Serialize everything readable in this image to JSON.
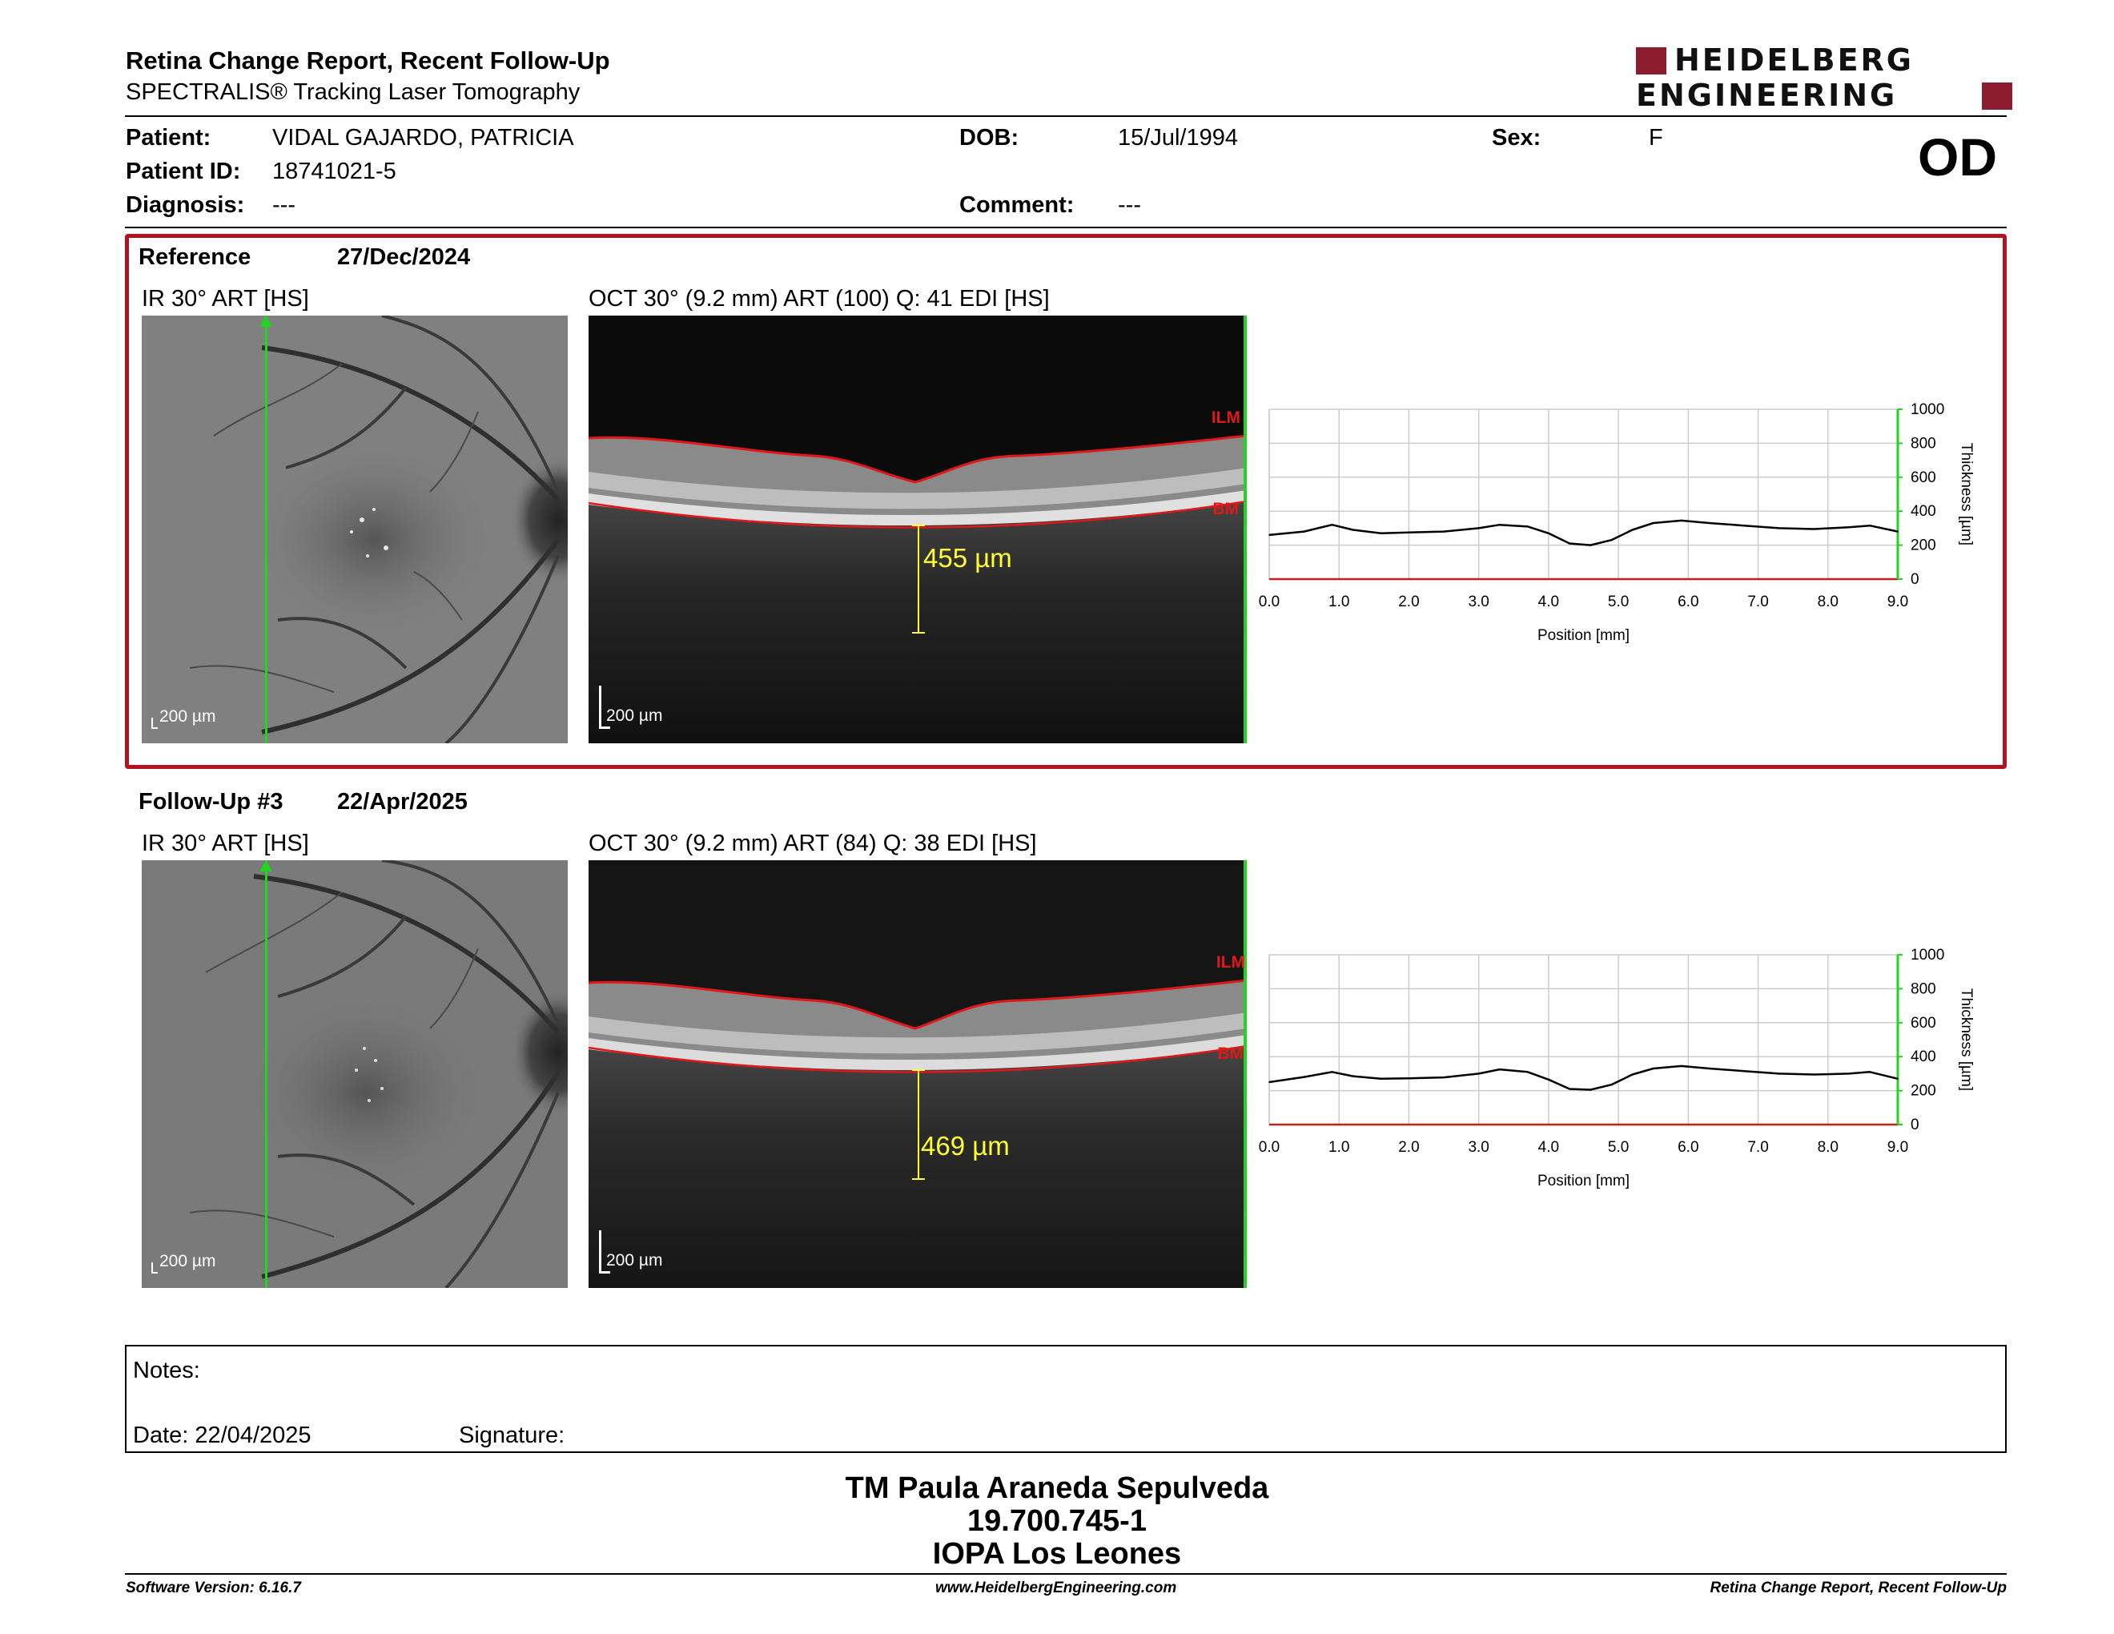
{
  "header": {
    "title": "Retina Change Report, Recent Follow-Up",
    "subtitle": "SPECTRALIS® Tracking Laser Tomography",
    "logo_line1": "HEIDELBERG",
    "logo_line2": "ENGINEERING",
    "eye": "OD"
  },
  "patient": {
    "name_label": "Patient:",
    "name": "VIDAL GAJARDO, PATRICIA",
    "id_label": "Patient ID:",
    "id": "18741021-5",
    "diagnosis_label": "Diagnosis:",
    "diagnosis": "---",
    "dob_label": "DOB:",
    "dob": "15/Jul/1994",
    "comment_label": "Comment:",
    "comment": "---",
    "sex_label": "Sex:",
    "sex": "F"
  },
  "reference": {
    "label": "Reference",
    "date": "27/Dec/2024",
    "ir_title": "IR 30° ART [HS]",
    "oct_title": "OCT 30° (9.2 mm) ART (100) Q: 41 EDI [HS]",
    "ir_scale": "200 µm",
    "oct_scale": "200 µm",
    "measurement": "455 µm",
    "ilm": "ILM",
    "bm": "BM"
  },
  "followup": {
    "label": "Follow-Up #3",
    "date": "22/Apr/2025",
    "ir_title": "IR 30° ART [HS]",
    "oct_title": "OCT 30° (9.2 mm) ART (84) Q: 38 EDI [HS]",
    "ir_scale": "200 µm",
    "oct_scale": "200 µm",
    "measurement": "469 µm",
    "ilm": "ILM",
    "bm": "BM"
  },
  "chart_data": [
    {
      "type": "line",
      "xlabel": "Position [mm]",
      "ylabel": "Thickness [µm]",
      "xlim": [
        0,
        9.0
      ],
      "ylim": [
        0,
        1000
      ],
      "xticks": [
        "0.0",
        "1.0",
        "2.0",
        "3.0",
        "4.0",
        "5.0",
        "6.0",
        "7.0",
        "8.0",
        "9.0"
      ],
      "yticks": [
        "0",
        "200",
        "400",
        "600",
        "800",
        "1000"
      ],
      "grid": true,
      "series_color": "#000000",
      "x": [
        0.0,
        0.5,
        0.9,
        1.2,
        1.6,
        2.0,
        2.5,
        3.0,
        3.3,
        3.7,
        4.0,
        4.3,
        4.6,
        4.9,
        5.2,
        5.5,
        5.9,
        6.3,
        6.8,
        7.3,
        7.8,
        8.3,
        8.6,
        9.0
      ],
      "y": [
        260,
        280,
        320,
        290,
        270,
        275,
        280,
        300,
        320,
        310,
        270,
        210,
        200,
        230,
        290,
        330,
        345,
        330,
        315,
        300,
        295,
        305,
        315,
        280
      ]
    },
    {
      "type": "line",
      "xlabel": "Position [mm]",
      "ylabel": "Thickness [µm]",
      "xlim": [
        0,
        9.0
      ],
      "ylim": [
        0,
        1000
      ],
      "xticks": [
        "0.0",
        "1.0",
        "2.0",
        "3.0",
        "4.0",
        "5.0",
        "6.0",
        "7.0",
        "8.0",
        "9.0"
      ],
      "yticks": [
        "0",
        "200",
        "400",
        "600",
        "800",
        "1000"
      ],
      "grid": true,
      "series_color": "#000000",
      "x": [
        0.0,
        0.5,
        0.9,
        1.2,
        1.6,
        2.0,
        2.5,
        3.0,
        3.3,
        3.7,
        4.0,
        4.3,
        4.6,
        4.9,
        5.2,
        5.5,
        5.9,
        6.3,
        6.8,
        7.3,
        7.8,
        8.3,
        8.6,
        9.0
      ],
      "y": [
        250,
        280,
        310,
        285,
        270,
        272,
        278,
        300,
        325,
        310,
        265,
        210,
        205,
        235,
        295,
        330,
        345,
        330,
        315,
        300,
        295,
        300,
        310,
        270
      ]
    }
  ],
  "notes": {
    "label": "Notes:",
    "date_label": "Date: 22/04/2025",
    "signature_label": "Signature:"
  },
  "signatory": {
    "name": "TM Paula Araneda Sepulveda",
    "rut": "19.700.745-1",
    "institution": "IOPA Los Leones"
  },
  "footer": {
    "software": "Software Version: 6.16.7",
    "website": "www.HeidelbergEngineering.com",
    "report": "Retina Change Report, Recent Follow-Up"
  },
  "colors": {
    "brand": "#8c1b2e",
    "reference_border": "#b0121f",
    "scan_line": "#22d322",
    "segmentation": "#e01818",
    "measurement": "#ffff33"
  }
}
